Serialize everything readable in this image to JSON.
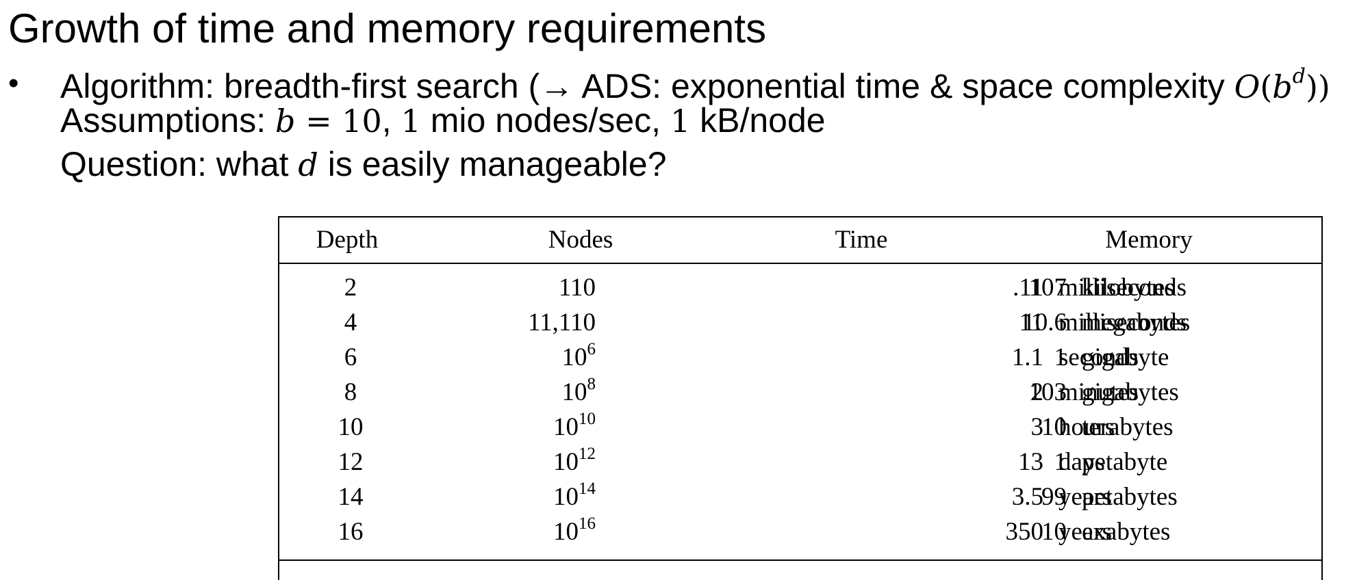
{
  "title": "Growth of time and memory requirements",
  "bullet": {
    "symbol": "•",
    "line1": {
      "text": "Algorithm: breadth-first search (→ ADS: exponential time & space complexity ",
      "math_O": "O",
      "math_open": "(",
      "math_base": "b",
      "math_exp": "d",
      "math_close": "))"
    },
    "line2": {
      "prefix": "Assumptions: ",
      "math_b": "b",
      "math_eq": " = 10",
      "sep1": ", ",
      "math_1a": "1",
      "mid": " mio nodes/sec, ",
      "math_1b": "1",
      "suffix": " kB/node"
    },
    "line3": {
      "prefix": "Question: what ",
      "math_d": "d",
      "suffix": " is easily manageable?"
    }
  },
  "table": {
    "headers": {
      "depth": "Depth",
      "nodes": "Nodes",
      "time": "Time",
      "memory": "Memory"
    },
    "rows": [
      {
        "depth": "2",
        "nodes_base": "110",
        "nodes_exp": "",
        "time_value": ".11",
        "time_unit": "milliseconds",
        "memory_value": "107",
        "memory_unit": "kilobytes"
      },
      {
        "depth": "4",
        "nodes_base": "11,110",
        "nodes_exp": "",
        "time_value": "11",
        "time_unit": "milliseconds",
        "memory_value": "10.6",
        "memory_unit": "megabytes"
      },
      {
        "depth": "6",
        "nodes_base": "10",
        "nodes_exp": "6",
        "time_value": "1.1",
        "time_unit": "seconds",
        "memory_value": "1",
        "memory_unit": "gigabyte"
      },
      {
        "depth": "8",
        "nodes_base": "10",
        "nodes_exp": "8",
        "time_value": "2",
        "time_unit": "minutes",
        "memory_value": "103",
        "memory_unit": "gigabytes"
      },
      {
        "depth": "10",
        "nodes_base": "10",
        "nodes_exp": "10",
        "time_value": "3",
        "time_unit": "hours",
        "memory_value": "10",
        "memory_unit": "terabytes"
      },
      {
        "depth": "12",
        "nodes_base": "10",
        "nodes_exp": "12",
        "time_value": "13",
        "time_unit": "days",
        "memory_value": "1",
        "memory_unit": "petabyte"
      },
      {
        "depth": "14",
        "nodes_base": "10",
        "nodes_exp": "14",
        "time_value": "3.5",
        "time_unit": "years",
        "memory_value": "99",
        "memory_unit": "petabytes"
      },
      {
        "depth": "16",
        "nodes_base": "10",
        "nodes_exp": "16",
        "time_value": "350",
        "time_unit": "years",
        "memory_value": "10",
        "memory_unit": "exabytes"
      }
    ]
  }
}
